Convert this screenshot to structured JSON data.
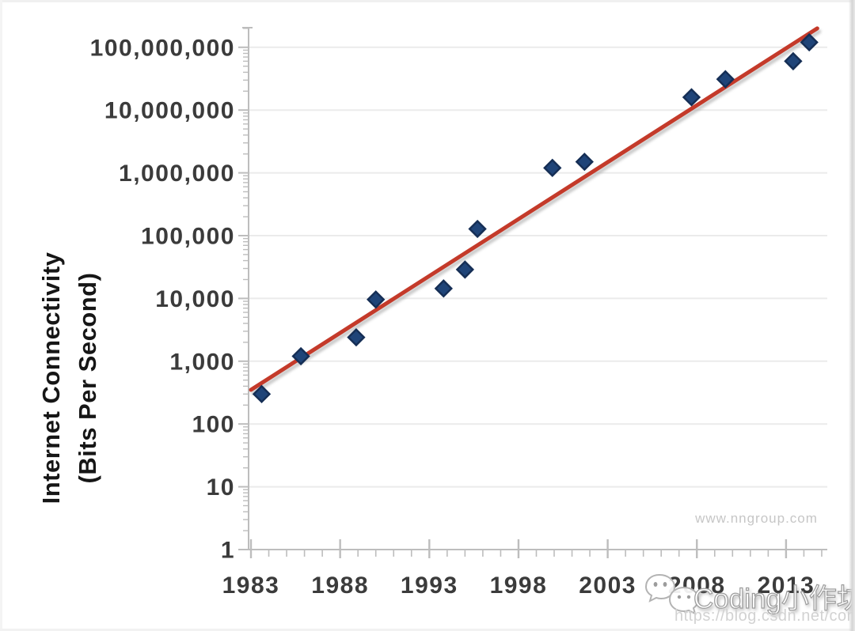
{
  "page": {
    "nngroup_watermark": "www.nngroup.com",
    "csdn_watermark": {
      "icon": "wechat-icon",
      "text": "Coding小作坊",
      "url": "https://blog.csdn.net/companyzh"
    }
  },
  "chart_data": {
    "type": "scatter",
    "title": "",
    "xlabel": "",
    "ylabel_lines": [
      "Internet Connectivity",
      "(Bits Per Second)"
    ],
    "y_scale": "log",
    "xlim": [
      1983,
      2015.3
    ],
    "ylim": [
      1,
      200000000
    ],
    "grid": "horizontal-decades",
    "legend": "none",
    "x_ticks": [
      {
        "year": 1983,
        "label": "1983"
      },
      {
        "year": 1988,
        "label": "1988"
      },
      {
        "year": 1993,
        "label": "1993"
      },
      {
        "year": 1998,
        "label": "1998"
      },
      {
        "year": 2003,
        "label": "2003"
      },
      {
        "year": 2008,
        "label": "2008"
      },
      {
        "year": 2013,
        "label": "2013"
      }
    ],
    "y_ticks": [
      {
        "value": 1,
        "label": "1"
      },
      {
        "value": 10,
        "label": "10"
      },
      {
        "value": 100,
        "label": "100"
      },
      {
        "value": 1000,
        "label": "1,000"
      },
      {
        "value": 10000,
        "label": "10,000"
      },
      {
        "value": 100000,
        "label": "100,000"
      },
      {
        "value": 1000000,
        "label": "1,000,000"
      },
      {
        "value": 10000000,
        "label": "10,000,000"
      },
      {
        "value": 100000000,
        "label": "100,000,000"
      }
    ],
    "series": [
      {
        "name": "observed-bandwidth",
        "type": "scatter",
        "marker": "diamond",
        "points": [
          {
            "year": 1983.6,
            "bps": 300
          },
          {
            "year": 1985.8,
            "bps": 1200
          },
          {
            "year": 1988.9,
            "bps": 2400
          },
          {
            "year": 1990.0,
            "bps": 9600
          },
          {
            "year": 1993.8,
            "bps": 14400
          },
          {
            "year": 1995.0,
            "bps": 28800
          },
          {
            "year": 1995.7,
            "bps": 128000
          },
          {
            "year": 1999.9,
            "bps": 1200000
          },
          {
            "year": 2001.7,
            "bps": 1500000
          },
          {
            "year": 2007.7,
            "bps": 16000000
          },
          {
            "year": 2009.6,
            "bps": 31000000
          },
          {
            "year": 2013.4,
            "bps": 60000000
          },
          {
            "year": 2014.3,
            "bps": 120000000
          }
        ]
      },
      {
        "name": "trend-line-50pct-annual-growth",
        "type": "line",
        "points": [
          {
            "year": 1983.0,
            "bps": 350
          },
          {
            "year": 2014.75,
            "bps": 200000000
          }
        ]
      }
    ],
    "colors": {
      "point_fill": "#1f4478",
      "point_border": "#152e55",
      "trend": "#c43a2a",
      "trend_shadow": "#9e9e9e",
      "axis": "#bdbdbd",
      "grid": "#ebebeb",
      "tick_label": "#3b3b3b"
    },
    "annotations": [
      "www.nngroup.com"
    ]
  }
}
